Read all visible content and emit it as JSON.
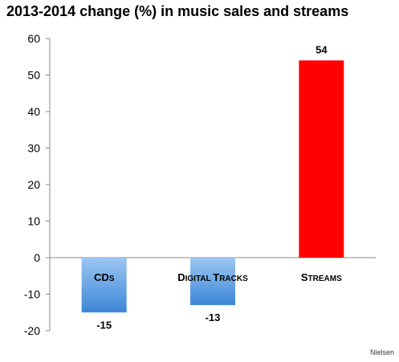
{
  "chart_data": {
    "type": "bar",
    "title": "2013-2014 change (%) in music sales and streams",
    "source": "Nielsen",
    "categories": [
      {
        "lead": "CD",
        "rest": "s"
      },
      {
        "lead": "D",
        "rest": "igital ",
        "lead2": "T",
        "rest2": "racks"
      },
      {
        "lead": "S",
        "rest": "treams"
      }
    ],
    "values": [
      -15,
      -13,
      54
    ],
    "data_labels": [
      "-15",
      "-13",
      "54"
    ],
    "ylim": [
      -20,
      60
    ],
    "yticks": [
      -20,
      -10,
      0,
      10,
      20,
      30,
      40,
      50,
      60
    ],
    "grid": false,
    "colors": {
      "negative_top": "#9cc7f2",
      "negative_bottom": "#3d86d8",
      "positive": "#ff0000"
    }
  }
}
